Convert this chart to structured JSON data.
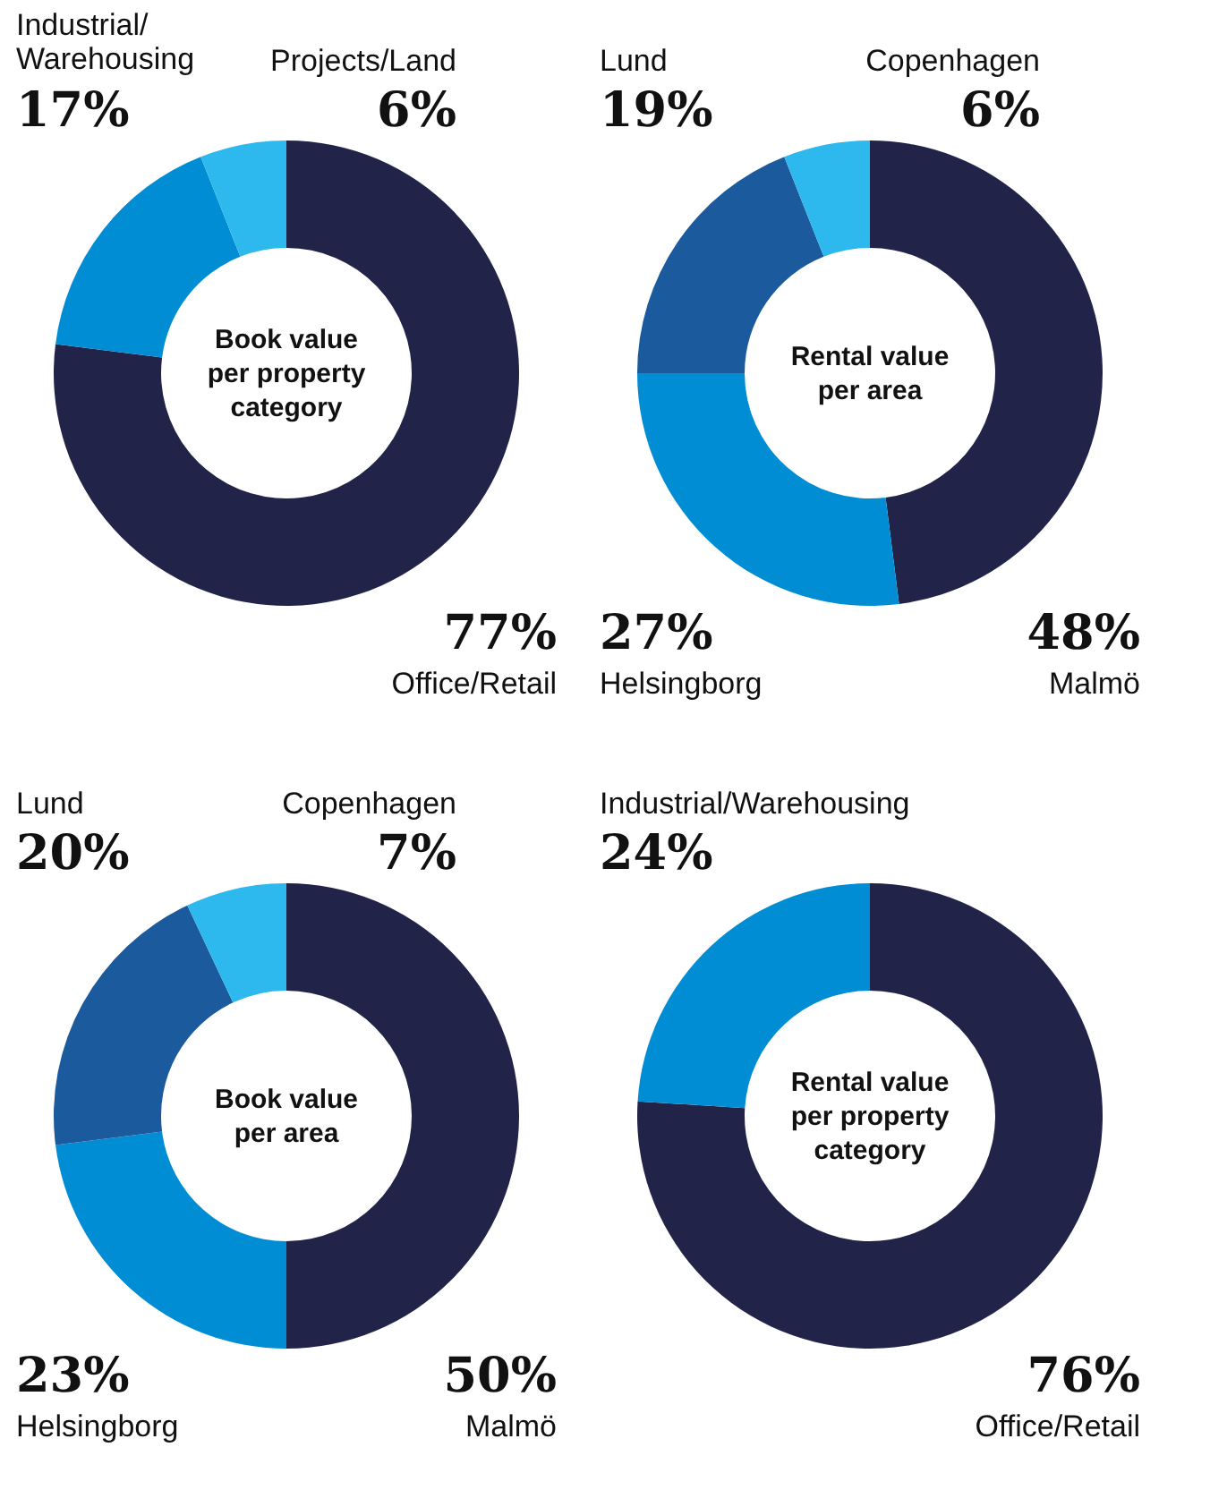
{
  "chart_data": [
    {
      "type": "donut",
      "title": "Book value per property category",
      "categories": [
        "Office/Retail",
        "Industrial/Warehousing",
        "Projects/Land"
      ],
      "values": [
        77,
        17,
        6
      ],
      "colors": [
        "#222348",
        "#008dd4",
        "#2db9ed"
      ],
      "value_labels": [
        "77%",
        "17%",
        "6%"
      ],
      "legend": false
    },
    {
      "type": "donut",
      "title": "Rental value per area",
      "categories": [
        "Malmö",
        "Helsingborg",
        "Lund",
        "Copenhagen"
      ],
      "values": [
        48,
        27,
        19,
        6
      ],
      "colors": [
        "#222348",
        "#008dd4",
        "#1c5a9e",
        "#2db9ed"
      ],
      "value_labels": [
        "48%",
        "27%",
        "19%",
        "6%"
      ],
      "legend": false
    },
    {
      "type": "donut",
      "title": "Book value per area",
      "categories": [
        "Malmö",
        "Helsingborg",
        "Lund",
        "Copenhagen"
      ],
      "values": [
        50,
        23,
        20,
        7
      ],
      "colors": [
        "#222348",
        "#008dd4",
        "#1c5a9e",
        "#2db9ed"
      ],
      "value_labels": [
        "50%",
        "23%",
        "20%",
        "7%"
      ],
      "legend": false
    },
    {
      "type": "donut",
      "title": "Rental value per property category",
      "categories": [
        "Office/Retail",
        "Industrial/Warehousing"
      ],
      "values": [
        76,
        24
      ],
      "colors": [
        "#222348",
        "#008dd4"
      ],
      "value_labels": [
        "76%",
        "24%"
      ],
      "legend": false
    }
  ]
}
